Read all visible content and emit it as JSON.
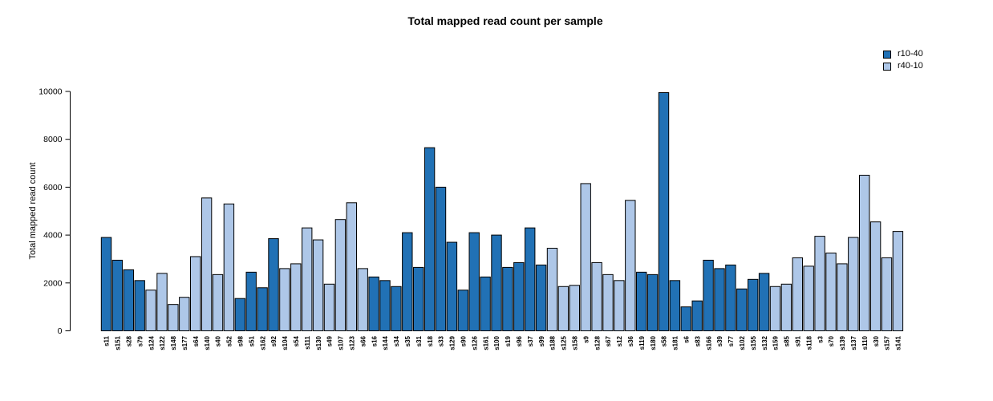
{
  "chart_data": {
    "type": "bar",
    "title": "Total mapped read count per sample",
    "ylabel": "Total mapped read count",
    "xlabel": "",
    "ylim": [
      0,
      10000
    ],
    "yticks": [
      0,
      2000,
      4000,
      6000,
      8000,
      10000
    ],
    "grid": false,
    "legend_position": "top-right",
    "bar_border_color": "#000000",
    "legend": [
      {
        "label": "r10-40",
        "color": "#2171b5"
      },
      {
        "label": "r40-10",
        "color": "#aec7e8"
      }
    ],
    "samples": [
      {
        "label": "s11",
        "value": 3900,
        "group": "r10-40"
      },
      {
        "label": "s151",
        "value": 2950,
        "group": "r10-40"
      },
      {
        "label": "s28",
        "value": 2550,
        "group": "r10-40"
      },
      {
        "label": "s79",
        "value": 2100,
        "group": "r10-40"
      },
      {
        "label": "s124",
        "value": 1700,
        "group": "r40-10"
      },
      {
        "label": "s122",
        "value": 2400,
        "group": "r40-10"
      },
      {
        "label": "s148",
        "value": 1100,
        "group": "r40-10"
      },
      {
        "label": "s177",
        "value": 1400,
        "group": "r40-10"
      },
      {
        "label": "s64",
        "value": 3100,
        "group": "r40-10"
      },
      {
        "label": "s140",
        "value": 5550,
        "group": "r40-10"
      },
      {
        "label": "s40",
        "value": 2350,
        "group": "r40-10"
      },
      {
        "label": "s52",
        "value": 5300,
        "group": "r40-10"
      },
      {
        "label": "s98",
        "value": 1350,
        "group": "r10-40"
      },
      {
        "label": "s51",
        "value": 2450,
        "group": "r10-40"
      },
      {
        "label": "s162",
        "value": 1800,
        "group": "r10-40"
      },
      {
        "label": "s92",
        "value": 3850,
        "group": "r10-40"
      },
      {
        "label": "s104",
        "value": 2600,
        "group": "r40-10"
      },
      {
        "label": "s54",
        "value": 2800,
        "group": "r40-10"
      },
      {
        "label": "s111",
        "value": 4300,
        "group": "r40-10"
      },
      {
        "label": "s130",
        "value": 3800,
        "group": "r40-10"
      },
      {
        "label": "s49",
        "value": 1950,
        "group": "r40-10"
      },
      {
        "label": "s107",
        "value": 4650,
        "group": "r40-10"
      },
      {
        "label": "s123",
        "value": 5350,
        "group": "r40-10"
      },
      {
        "label": "s66",
        "value": 2600,
        "group": "r40-10"
      },
      {
        "label": "s16",
        "value": 2250,
        "group": "r10-40"
      },
      {
        "label": "s144",
        "value": 2100,
        "group": "r10-40"
      },
      {
        "label": "s34",
        "value": 1850,
        "group": "r10-40"
      },
      {
        "label": "s35",
        "value": 4100,
        "group": "r10-40"
      },
      {
        "label": "s31",
        "value": 2650,
        "group": "r10-40"
      },
      {
        "label": "s18",
        "value": 7650,
        "group": "r10-40"
      },
      {
        "label": "s33",
        "value": 6000,
        "group": "r10-40"
      },
      {
        "label": "s129",
        "value": 3700,
        "group": "r10-40"
      },
      {
        "label": "s90",
        "value": 1700,
        "group": "r10-40"
      },
      {
        "label": "s126",
        "value": 4100,
        "group": "r10-40"
      },
      {
        "label": "s161",
        "value": 2250,
        "group": "r10-40"
      },
      {
        "label": "s100",
        "value": 4000,
        "group": "r10-40"
      },
      {
        "label": "s19",
        "value": 2650,
        "group": "r10-40"
      },
      {
        "label": "s96",
        "value": 2850,
        "group": "r10-40"
      },
      {
        "label": "s37",
        "value": 4300,
        "group": "r10-40"
      },
      {
        "label": "s99",
        "value": 2750,
        "group": "r10-40"
      },
      {
        "label": "s188",
        "value": 3450,
        "group": "r40-10"
      },
      {
        "label": "s125",
        "value": 1850,
        "group": "r40-10"
      },
      {
        "label": "s158",
        "value": 1900,
        "group": "r40-10"
      },
      {
        "label": "s9",
        "value": 6150,
        "group": "r40-10"
      },
      {
        "label": "s128",
        "value": 2850,
        "group": "r40-10"
      },
      {
        "label": "s67",
        "value": 2350,
        "group": "r40-10"
      },
      {
        "label": "s12",
        "value": 2100,
        "group": "r40-10"
      },
      {
        "label": "s36",
        "value": 5450,
        "group": "r40-10"
      },
      {
        "label": "s119",
        "value": 2450,
        "group": "r10-40"
      },
      {
        "label": "s180",
        "value": 2350,
        "group": "r10-40"
      },
      {
        "label": "s58",
        "value": 9950,
        "group": "r10-40"
      },
      {
        "label": "s181",
        "value": 2100,
        "group": "r10-40"
      },
      {
        "label": "s6",
        "value": 1000,
        "group": "r10-40"
      },
      {
        "label": "s83",
        "value": 1250,
        "group": "r10-40"
      },
      {
        "label": "s166",
        "value": 2950,
        "group": "r10-40"
      },
      {
        "label": "s39",
        "value": 2600,
        "group": "r10-40"
      },
      {
        "label": "s77",
        "value": 2750,
        "group": "r10-40"
      },
      {
        "label": "s102",
        "value": 1750,
        "group": "r10-40"
      },
      {
        "label": "s155",
        "value": 2150,
        "group": "r10-40"
      },
      {
        "label": "s132",
        "value": 2400,
        "group": "r10-40"
      },
      {
        "label": "s159",
        "value": 1850,
        "group": "r40-10"
      },
      {
        "label": "s85",
        "value": 1950,
        "group": "r40-10"
      },
      {
        "label": "s91",
        "value": 3050,
        "group": "r40-10"
      },
      {
        "label": "s118",
        "value": 2700,
        "group": "r40-10"
      },
      {
        "label": "s3",
        "value": 3950,
        "group": "r40-10"
      },
      {
        "label": "s70",
        "value": 3250,
        "group": "r40-10"
      },
      {
        "label": "s139",
        "value": 2800,
        "group": "r40-10"
      },
      {
        "label": "s137",
        "value": 3900,
        "group": "r40-10"
      },
      {
        "label": "s110",
        "value": 6500,
        "group": "r40-10"
      },
      {
        "label": "s30",
        "value": 4550,
        "group": "r40-10"
      },
      {
        "label": "s157",
        "value": 3050,
        "group": "r40-10"
      },
      {
        "label": "s141",
        "value": 4150,
        "group": "r40-10"
      }
    ]
  }
}
